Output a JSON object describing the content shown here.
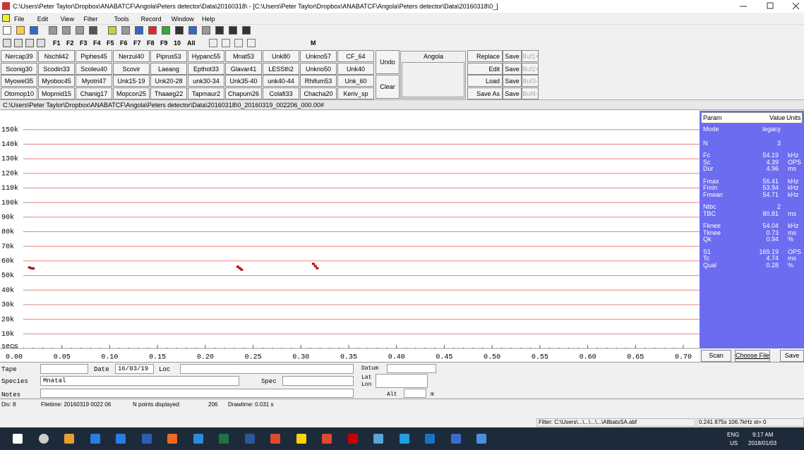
{
  "window": {
    "title": "C:\\Users\\Peter Taylor\\Dropbox\\ANABATCF\\Angola\\Peters detector\\Data\\20160318\\ - [C:\\Users\\Peter Taylor\\Dropbox\\ANABATCF\\Angola\\Peters detector\\Data\\20160318\\0_]"
  },
  "menu": [
    "File",
    "Edit",
    "View",
    "Filter",
    "Tools",
    "Record",
    "Window",
    "Help"
  ],
  "toolbar2": [
    "F1",
    "F2",
    "F3",
    "F4",
    "F5",
    "F6",
    "F7",
    "F8",
    "F9",
    "10",
    "All",
    "M"
  ],
  "species_buttons": [
    [
      "Nercap39",
      "Nschli42",
      "Piphes45",
      "Nerzul40",
      "Piprus53",
      "Hypanc55",
      "Mnat53",
      "Unk80",
      "Unkno57",
      "CF_64"
    ],
    [
      "Sconig30",
      "Scodin33",
      "Scoleu40",
      "Scovir",
      "Laeang",
      "Epthot33",
      "Glavar41",
      "LESSth2",
      "Unkno50",
      "Unk40"
    ],
    [
      "Myowel35",
      "Myoboc45",
      "Myotri47",
      "Unk15-19",
      "Unk20-28",
      "unk30-34",
      "Unk35-40",
      "unk40-44",
      "Rhifum53",
      "Unk_60"
    ],
    [
      "Otomop10",
      "Mopmid15",
      "Chanig17",
      "Mopcon25",
      "Thaaeg22",
      "Tapmaur2",
      "Chapum26",
      "Colafi33",
      "Chacha20",
      "Keriv_sp"
    ]
  ],
  "edit_buttons": [
    "Undo",
    "Clear"
  ],
  "group_box": "Angola",
  "list_buttons": [
    "Replace",
    "Edit",
    "Load",
    "Save As"
  ],
  "save_buttons": [
    "Save",
    "Save",
    "Save",
    "Save"
  ],
  "buffers": [
    "Buf1+",
    "Buf2+",
    "Buf3-",
    "Buf4-"
  ],
  "file_path": "C:\\Users\\Peter Taylor\\Dropbox\\ANABATCF\\Angola\\Peters detector\\Data\\20160318\\0_20160319_002206_000.00#",
  "plot": {
    "x_label": "secs",
    "xlim": [
      0,
      0.7
    ],
    "ylim": [
      0,
      160000
    ],
    "xticks": [
      {
        "value": 0,
        "label": "0.00"
      },
      0.05,
      {
        "value": 0.1,
        "label": "0.10"
      },
      0.15,
      {
        "value": 0.2,
        "label": "0.20"
      },
      0.25,
      {
        "value": 0.3,
        "label": "0.30"
      },
      0.35,
      {
        "value": 0.4,
        "label": "0.40"
      },
      0.45,
      {
        "value": 0.5,
        "label": "0.50"
      },
      0.55,
      {
        "value": 0.6,
        "label": "0.60"
      },
      0.65,
      {
        "value": 0.7,
        "label": "0.70"
      }
    ],
    "yticks": [
      {
        "value": 10000,
        "label": "10k"
      },
      {
        "value": 20000,
        "label": "20k"
      },
      {
        "value": 30000,
        "label": "30k"
      },
      {
        "value": 40000,
        "label": "40k"
      },
      {
        "value": 50000,
        "label": "50k"
      },
      {
        "value": 60000,
        "label": "60k"
      },
      {
        "value": 70000,
        "label": "70k"
      },
      {
        "value": 80000,
        "label": "80k"
      },
      {
        "value": 90000,
        "label": "90k"
      },
      {
        "value": 100000,
        "label": "100k"
      },
      {
        "value": 110000,
        "label": "110k"
      },
      {
        "value": 120000,
        "label": "120k"
      },
      {
        "value": 130000,
        "label": "130k"
      },
      {
        "value": 140000,
        "label": "140k"
      },
      {
        "value": 150000,
        "label": "150k"
      }
    ],
    "points": {
      "t": [
        0.016,
        0.018,
        0.02,
        0.234,
        0.236,
        0.238,
        0.313,
        0.315,
        0.317
      ],
      "f": [
        55500,
        55000,
        54800,
        56000,
        55000,
        54000,
        58000,
        56500,
        55000
      ]
    }
  },
  "params": {
    "header": [
      "Param",
      "Value",
      "Units"
    ],
    "rows": [
      {
        "name": "Mode",
        "value": "legacy"
      },
      {
        "name": "N",
        "value": "3"
      },
      {
        "name": "Fc",
        "value": "54.19",
        "unit": "kHz"
      },
      {
        "name": "Sc",
        "value": "4.39",
        "unit": "OPS"
      },
      {
        "name": "Dur",
        "value": "4.96",
        "unit": "ms"
      },
      {
        "name": "Fmax",
        "value": "56.41",
        "unit": "kHz"
      },
      {
        "name": "Fmin",
        "value": "53.94",
        "unit": "kHz"
      },
      {
        "name": "Fmean",
        "value": "54.71",
        "unit": "kHz"
      },
      {
        "name": "Ntbc",
        "value": "2"
      },
      {
        "name": "TBC",
        "value": "80.81",
        "unit": "ms"
      },
      {
        "name": "Fknee",
        "value": "54.04",
        "unit": "kHz"
      },
      {
        "name": "Tknee",
        "value": "0.73",
        "unit": "ms"
      },
      {
        "name": "Qk",
        "value": "0.94",
        "unit": "%"
      },
      {
        "name": "S1",
        "value": "169.19",
        "unit": "OPS"
      },
      {
        "name": "Tc",
        "value": "4.74",
        "unit": "ms"
      },
      {
        "name": "Qual",
        "value": "0.28",
        "unit": "%"
      }
    ]
  },
  "panel_buttons": [
    "Scan",
    "Choose File",
    "Save"
  ],
  "form": {
    "tape": "Tape",
    "date_label": "Date",
    "date": "16/03/19",
    "loc": "Loc",
    "datum": "Datum",
    "species_label": "Species",
    "species": "Mnatal",
    "spec": "Spec",
    "lat": "Lat",
    "lon": "Lon",
    "notes": "Notes",
    "alt": "Alt",
    "alt_unit": "m"
  },
  "status": [
    "Div: 8",
    "Filetime: 20160319 0022 06",
    "N points displayed:",
    "206",
    "Drawtime: 0.031 s"
  ],
  "status2": [
    "Filter: C:\\Users\\...\\...\\...\\...\\AllbatsSA.abf",
    "0.241 875s 106.7kHz st=  0"
  ],
  "taskbar": {
    "lang": "ENG",
    "region": "US",
    "time": "9:17 AM",
    "date": "2018/01/03"
  }
}
